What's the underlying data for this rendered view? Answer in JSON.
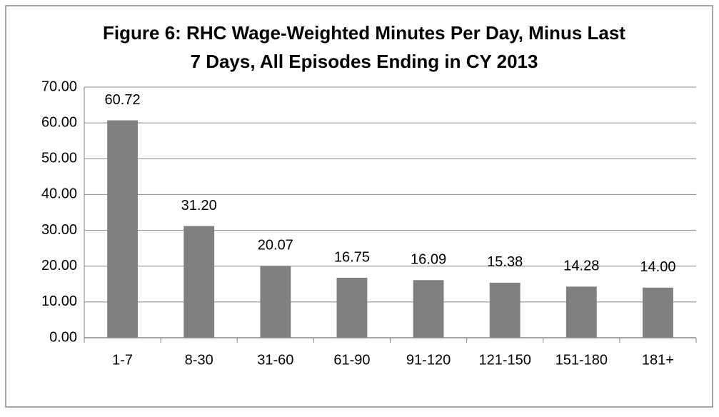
{
  "chart_data": {
    "type": "bar",
    "title": [
      "Figure 6: RHC Wage-Weighted Minutes Per Day, Minus Last",
      "7 Days, All Episodes Ending in CY 2013"
    ],
    "categories": [
      "1-7",
      "8-30",
      "31-60",
      "61-90",
      "91-120",
      "121-150",
      "151-180",
      "181+"
    ],
    "values": [
      60.72,
      31.2,
      20.07,
      16.75,
      16.09,
      15.38,
      14.28,
      14
    ],
    "value_labels": [
      "60.72",
      "31.20",
      "20.07",
      "16.75",
      "16.09",
      "15.38",
      "14.28",
      "14.00"
    ],
    "color": "#808080",
    "ylim": [
      0,
      70
    ],
    "yticks": [
      {
        "value": 0,
        "label": "0.00"
      },
      {
        "value": 10,
        "label": "10.00"
      },
      {
        "value": 20,
        "label": "20.00"
      },
      {
        "value": 30,
        "label": "30.00"
      },
      {
        "value": 40,
        "label": "40.00"
      },
      {
        "value": 50,
        "label": "50.00"
      },
      {
        "value": 60,
        "label": "60.00"
      },
      {
        "value": 70,
        "label": "70.00"
      }
    ],
    "grid": true
  }
}
